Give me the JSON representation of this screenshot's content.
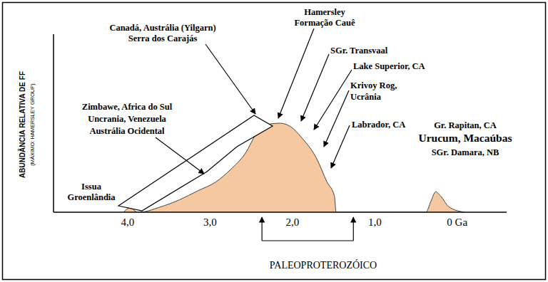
{
  "chart_data": {
    "type": "area",
    "x": [
      4.05,
      3.97,
      3.88,
      3.86,
      3.6,
      3.37,
      3.15,
      2.93,
      2.75,
      2.58,
      2.41,
      2.28,
      2.15,
      2.02,
      1.89,
      1.71,
      1.58,
      1.49,
      1.47,
      0.38,
      0.32,
      0.26,
      0.2,
      0.1,
      -0.09
    ],
    "values": [
      0,
      5,
      0,
      0,
      6,
      14,
      24,
      34,
      48,
      65,
      92,
      99,
      100,
      96,
      84,
      61,
      34,
      18,
      0,
      0,
      12,
      23,
      18,
      6,
      0
    ],
    "color": "#f5c8a2",
    "xlim": [
      4.9,
      -0.6
    ],
    "xticks": [
      {
        "value": 4,
        "label": "4,0"
      },
      {
        "value": 3,
        "label": "3,0"
      },
      {
        "value": 2,
        "label": "2,0"
      },
      {
        "value": 1,
        "label": "1,0"
      },
      {
        "value": 0,
        "label": "0 Ga"
      }
    ],
    "ylim": [
      0,
      200
    ],
    "tick_labels": "x",
    "ylabel": "ABUNDÂNCIA RELATIVA DE FF",
    "ylabel_note": "(MÁXIMO: HAMERSLEY GROUP)",
    "annotations": [
      {
        "text": "Issua\nGroenlândia"
      },
      {
        "text": "Zimbawe, Africa do Sul\nUncrania, Venezuela\nAustrália Ocidental"
      },
      {
        "text": "Canadá, Austrália (Yilgarn)\nSerra dos Carajás"
      },
      {
        "text": "Hamersley\nFormação Cauê"
      },
      {
        "text": "SGr. Transvaal"
      },
      {
        "text": "Lake Superior, CA"
      },
      {
        "text": "Krivoy Rog,\nUcrânia"
      },
      {
        "text": "Labrador, CA"
      },
      {
        "text": "Gr. Rapitan, CA\nUrucum, Macaúbas\nSGr. Damara, NB"
      }
    ],
    "period": {
      "label": "PALEOPROTEROZÓICO",
      "span": [
        2.37,
        1.26
      ]
    }
  }
}
